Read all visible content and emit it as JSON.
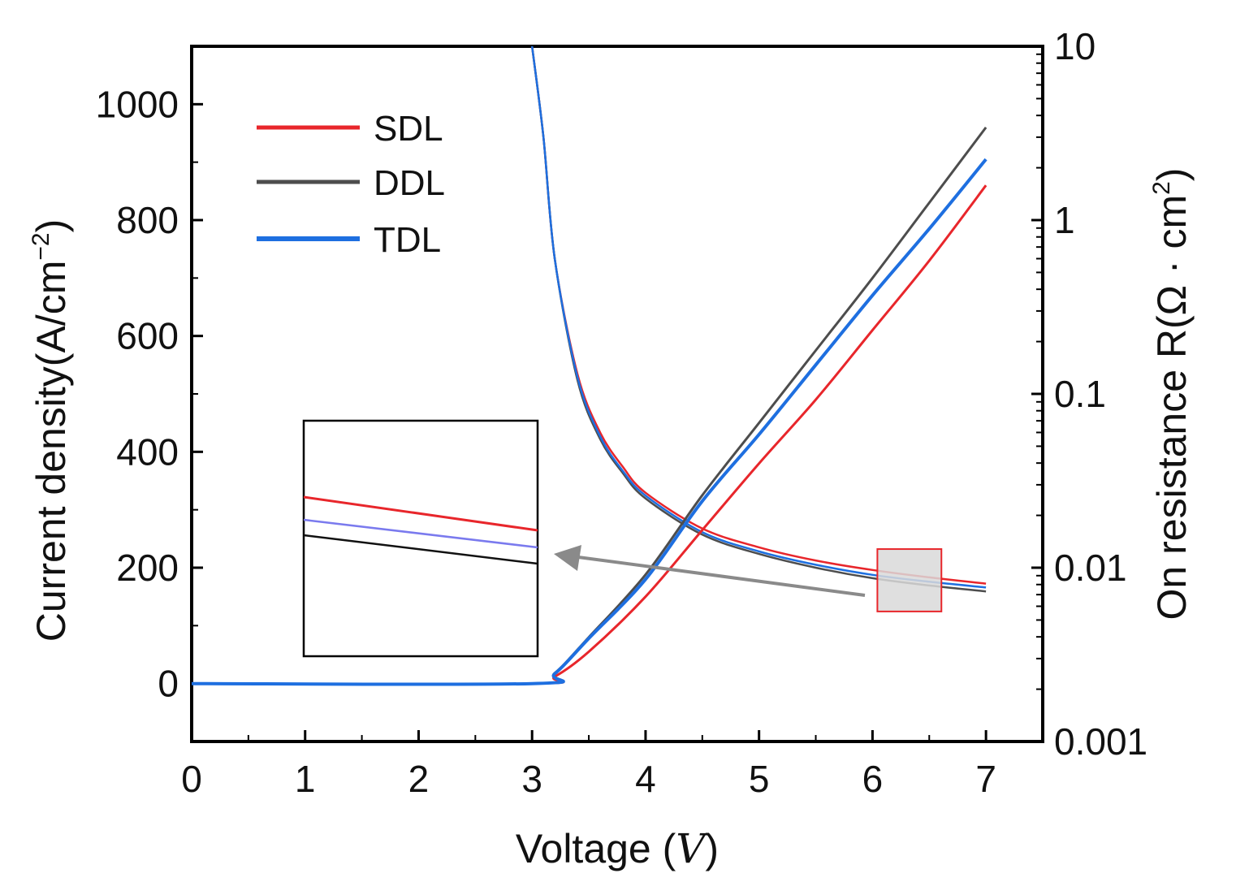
{
  "chart_data": {
    "type": "line",
    "title": "",
    "xlabel": "Voltage",
    "xlabel_unit": "V",
    "ylabel_left": "Current density(A/cm",
    "ylabel_left_sup": "−2",
    "ylabel_left_close": ")",
    "ylabel_right": "On resistance R(Ω · cm",
    "ylabel_right_sup": "2",
    "ylabel_right_close": ")",
    "xlim": [
      0,
      7.5
    ],
    "ylim_left": [
      -100,
      1100
    ],
    "ylim_right": [
      0.001,
      10
    ],
    "yscale_right": "log",
    "x_ticks": [
      0,
      1,
      2,
      3,
      4,
      5,
      6,
      7
    ],
    "x_tick_labels": [
      "0",
      "1",
      "2",
      "3",
      "4",
      "5",
      "6",
      "7"
    ],
    "y_left_ticks": [
      0,
      200,
      400,
      600,
      800,
      1000
    ],
    "y_left_tick_labels": [
      "0",
      "200",
      "400",
      "600",
      "800",
      "1000"
    ],
    "y_right_ticks": [
      0.001,
      0.01,
      0.1,
      1,
      10
    ],
    "y_right_tick_labels": [
      "0.001",
      "0.01",
      "0.1",
      "1",
      "10"
    ],
    "legend": {
      "position": "top-left",
      "entries": [
        "SDL",
        "DDL",
        "TDL"
      ]
    },
    "colors": {
      "SDL": "#e8262b",
      "DDL": "#4d4d4d",
      "TDL": "#1e6fe0"
    },
    "current_density_series": [
      {
        "name": "SDL",
        "axis": "left",
        "x": [
          0,
          3.0,
          3.2,
          3.5,
          4.0,
          4.5,
          5.0,
          5.5,
          6.0,
          6.5,
          7.0
        ],
        "y": [
          0,
          0,
          12,
          55,
          150,
          265,
          380,
          490,
          610,
          730,
          860
        ]
      },
      {
        "name": "DDL",
        "axis": "left",
        "x": [
          0,
          3.0,
          3.2,
          3.5,
          4.0,
          4.5,
          5.0,
          5.5,
          6.0,
          6.5,
          7.0
        ],
        "y": [
          0,
          0,
          18,
          80,
          188,
          325,
          450,
          575,
          700,
          830,
          960
        ]
      },
      {
        "name": "TDL",
        "axis": "left",
        "x": [
          0,
          3.0,
          3.2,
          3.5,
          4.0,
          4.5,
          5.0,
          5.5,
          6.0,
          6.5,
          7.0
        ],
        "y": [
          0,
          0,
          17,
          78,
          180,
          315,
          430,
          550,
          670,
          785,
          905
        ]
      }
    ],
    "resistance_series": [
      {
        "name": "SDL",
        "axis": "right",
        "x": [
          3.0,
          3.1,
          3.2,
          3.4,
          3.6,
          3.8,
          4.0,
          4.5,
          5.0,
          5.5,
          6.0,
          6.5,
          7.0
        ],
        "y": [
          10,
          3.0,
          0.6,
          0.13,
          0.06,
          0.038,
          0.027,
          0.0168,
          0.0131,
          0.011,
          0.0097,
          0.0088,
          0.0081
        ]
      },
      {
        "name": "DDL",
        "axis": "right",
        "x": [
          3.0,
          3.1,
          3.2,
          3.4,
          3.6,
          3.8,
          4.0,
          4.5,
          5.0,
          5.5,
          6.0,
          6.5,
          7.0
        ],
        "y": [
          10,
          3.0,
          0.6,
          0.12,
          0.055,
          0.035,
          0.025,
          0.0155,
          0.012,
          0.01,
          0.0087,
          0.0079,
          0.0073
        ]
      },
      {
        "name": "TDL",
        "axis": "right",
        "x": [
          3.0,
          3.1,
          3.2,
          3.4,
          3.6,
          3.8,
          4.0,
          4.5,
          5.0,
          5.5,
          6.0,
          6.5,
          7.0
        ],
        "y": [
          10,
          3.0,
          0.6,
          0.125,
          0.057,
          0.036,
          0.026,
          0.016,
          0.0124,
          0.0104,
          0.0091,
          0.0083,
          0.0077
        ]
      }
    ],
    "annotations": [
      {
        "type": "zoom-region",
        "x_range": [
          6.0,
          6.55
        ],
        "y_right_range": [
          0.0056,
          0.0128
        ]
      },
      {
        "type": "inset",
        "content": "magnified view of the resistance curves at high voltage",
        "order_top_to_bottom": [
          "SDL",
          "TDL",
          "DDL"
        ]
      }
    ]
  }
}
